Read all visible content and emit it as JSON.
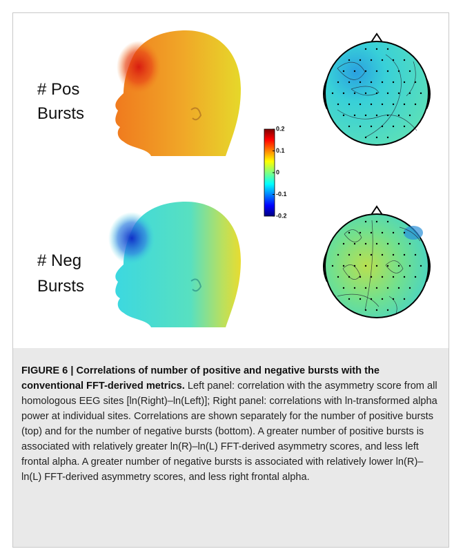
{
  "figure": {
    "rows": [
      {
        "label_line1": "# Pos",
        "label_line2": "Bursts"
      },
      {
        "label_line1": "# Neg",
        "label_line2": "Bursts"
      }
    ],
    "colorbar": {
      "lim": [
        -0.2,
        0.2
      ],
      "ticks": [
        0.2,
        0.1,
        0,
        -0.1,
        -0.2
      ]
    },
    "caption": {
      "label": "FIGURE 6 | Correlations of number of positive and negative bursts with the conventional FFT-derived metrics.",
      "text": "Left panel: correlation with the asymmetry score from all homologous EEG sites [ln(Right)–ln(Left)]; Right panel: correlations with ln-transformed alpha power at individual sites. Correlations are shown separately for the number of positive bursts (top) and for the number of negative bursts (bottom). A greater number of positive bursts is associated with relatively greater ln(R)–ln(L) FFT-derived asymmetry scores, and less left frontal alpha. A greater number of negative bursts is associated with relatively lower ln(R)–ln(L) FFT-derived asymmetry scores, and less right frontal alpha."
    }
  }
}
